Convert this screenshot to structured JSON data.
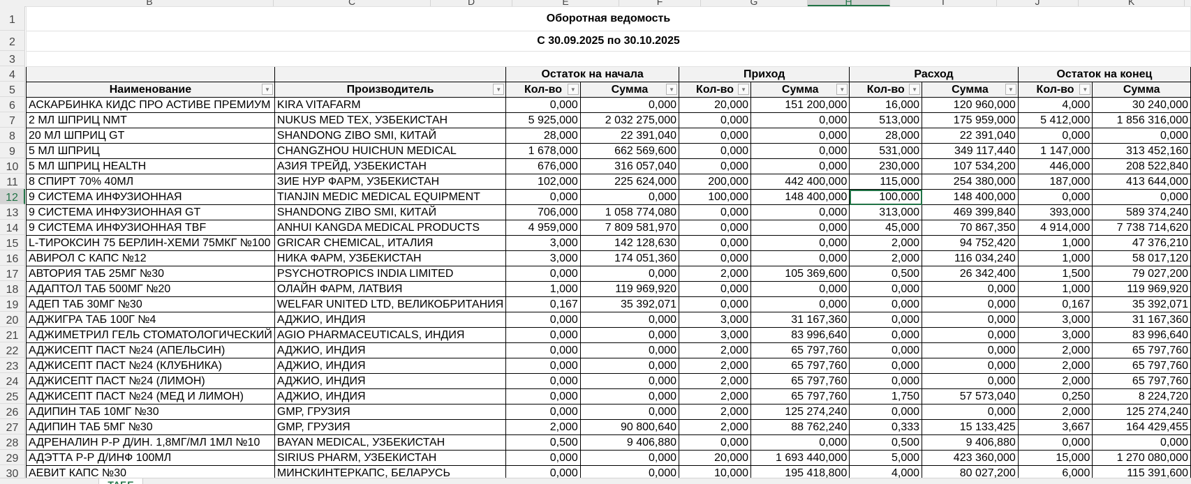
{
  "sheet": {
    "column_letters": [
      "B",
      "C",
      "D",
      "E",
      "F",
      "G",
      "H",
      "I",
      "J",
      "K"
    ],
    "selected_column": "H",
    "selected_row": 12,
    "selected_cell_value": "100,000",
    "title": "Оборотная ведомость",
    "subtitle": "С 30.09.2025 по 30.10.2025",
    "groups": [
      "Остаток на начала",
      "Приход",
      "Расход",
      "Остаток на конец"
    ],
    "headers": [
      "Наименование",
      "Производитель",
      "Кол-во",
      "Сумма",
      "Кол-во",
      "Сумма",
      "Кол-во",
      "Сумма",
      "Кол-во",
      "Сумма"
    ],
    "tab_label": "ТАБЕ",
    "accent_color": "#217346",
    "rows": [
      {
        "n": 6,
        "c": [
          " АСКАРБИНКА КИДС ПРО АСТИВЕ ПРЕМИУМ",
          "KIRA VITAFARM",
          "0,000",
          "0,000",
          "20,000",
          "151 200,000",
          "16,000",
          "120 960,000",
          "4,000",
          "30 240,000"
        ]
      },
      {
        "n": 7,
        "c": [
          "2 МЛ ШПРИЦ NMT",
          "NUKUS MED TEX, УЗБЕКИСТАН",
          "5 925,000",
          "2 032 275,000",
          "0,000",
          "0,000",
          "513,000",
          "175 959,000",
          "5 412,000",
          "1 856 316,000"
        ]
      },
      {
        "n": 8,
        "c": [
          "20 МЛ ШПРИЦ GT",
          "SHANDONG ZIBO SMI, КИТАЙ",
          "28,000",
          "22 391,040",
          "0,000",
          "0,000",
          "28,000",
          "22 391,040",
          "0,000",
          "0,000"
        ]
      },
      {
        "n": 9,
        "c": [
          "5 МЛ ШПРИЦ",
          "CHANGZHOU HUICHUN MEDICAL",
          "1 678,000",
          "662 569,600",
          "0,000",
          "0,000",
          "531,000",
          "349 117,440",
          "1 147,000",
          "313 452,160"
        ]
      },
      {
        "n": 10,
        "c": [
          "5 МЛ ШПРИЦ HEALTH",
          "АЗИЯ ТРЕЙД, УЗБЕКИСТАН",
          "676,000",
          "316 057,040",
          "0,000",
          "0,000",
          "230,000",
          "107 534,200",
          "446,000",
          "208 522,840"
        ]
      },
      {
        "n": 11,
        "c": [
          "8 СПИРТ 70% 40МЛ",
          "ЗИЕ НУР ФАРМ, УЗБЕКИСТАН",
          "102,000",
          "225 624,000",
          "200,000",
          "442 400,000",
          "115,000",
          "254 380,000",
          "187,000",
          "413 644,000"
        ]
      },
      {
        "n": 12,
        "c": [
          "9 СИСТЕМА ИНФУЗИОННАЯ",
          "TIANJIN MEDIC MEDICAL EQUIPMENT",
          "0,000",
          "0,000",
          "100,000",
          "148 400,000",
          "100,000",
          "148 400,000",
          "0,000",
          "0,000"
        ]
      },
      {
        "n": 13,
        "c": [
          "9 СИСТЕМА ИНФУЗИОННАЯ GT",
          "SHANDONG ZIBO SMI, КИТАЙ",
          "706,000",
          "1 058 774,080",
          "0,000",
          "0,000",
          "313,000",
          "469 399,840",
          "393,000",
          "589 374,240"
        ]
      },
      {
        "n": 14,
        "c": [
          "9 СИСТЕМА ИНФУЗИОННАЯ TBF",
          "ANHUI KANGDA MEDICAL PRODUCTS",
          "4 959,000",
          "7 809 581,970",
          "0,000",
          "0,000",
          "45,000",
          "70 867,350",
          "4 914,000",
          "7 738 714,620"
        ]
      },
      {
        "n": 15,
        "c": [
          "L-ТИРОКСИН 75 БЕРЛИН-ХЕМИ 75МКГ №100",
          "GRICAR CHEMICAL, ИТАЛИЯ",
          "3,000",
          "142 128,630",
          "0,000",
          "0,000",
          "2,000",
          "94 752,420",
          "1,000",
          "47 376,210"
        ]
      },
      {
        "n": 16,
        "c": [
          "АВИРОЛ С КАПС №12",
          "НИКА ФАРМ, УЗБЕКИСТАН",
          "3,000",
          "174 051,360",
          "0,000",
          "0,000",
          "2,000",
          "116 034,240",
          "1,000",
          "58 017,120"
        ]
      },
      {
        "n": 17,
        "c": [
          "АВТОРИЯ ТАБ 25МГ №30",
          "PSYCHOTROPICS INDIA LIMITED",
          "0,000",
          "0,000",
          "2,000",
          "105 369,600",
          "0,500",
          "26 342,400",
          "1,500",
          "79 027,200"
        ]
      },
      {
        "n": 18,
        "c": [
          "АДАПТОЛ ТАБ 500МГ №20",
          "ОЛАЙН ФАРМ, ЛАТВИЯ",
          "1,000",
          "119 969,920",
          "0,000",
          "0,000",
          "0,000",
          "0,000",
          "1,000",
          "119 969,920"
        ]
      },
      {
        "n": 19,
        "c": [
          "АДЕП ТАБ 30МГ №30",
          "WELFAR UNITED LTD, ВЕЛИКОБРИТАНИЯ",
          "0,167",
          "35 392,071",
          "0,000",
          "0,000",
          "0,000",
          "0,000",
          "0,167",
          "35 392,071"
        ]
      },
      {
        "n": 20,
        "c": [
          "АДЖИГРА ТАБ 100Г №4",
          "АДЖИО, ИНДИЯ",
          "0,000",
          "0,000",
          "3,000",
          "31 167,360",
          "0,000",
          "0,000",
          "3,000",
          "31 167,360"
        ]
      },
      {
        "n": 21,
        "c": [
          "АДЖИМЕТРИЛ ГЕЛЬ СТОМАТОЛОГИЧЕСКИЙ",
          "AGIO PHARMACEUTICALS, ИНДИЯ",
          "0,000",
          "0,000",
          "3,000",
          "83 996,640",
          "0,000",
          "0,000",
          "3,000",
          "83 996,640"
        ]
      },
      {
        "n": 22,
        "c": [
          "АДЖИСЕПТ ПАСТ №24 (АПЕЛЬСИН)",
          "АДЖИО, ИНДИЯ",
          "0,000",
          "0,000",
          "2,000",
          "65 797,760",
          "0,000",
          "0,000",
          "2,000",
          "65 797,760"
        ]
      },
      {
        "n": 23,
        "c": [
          "АДЖИСЕПТ ПАСТ №24 (КЛУБНИКА)",
          "АДЖИО, ИНДИЯ",
          "0,000",
          "0,000",
          "2,000",
          "65 797,760",
          "0,000",
          "0,000",
          "2,000",
          "65 797,760"
        ]
      },
      {
        "n": 24,
        "c": [
          "АДЖИСЕПТ ПАСТ №24 (ЛИМОН)",
          "АДЖИО, ИНДИЯ",
          "0,000",
          "0,000",
          "2,000",
          "65 797,760",
          "0,000",
          "0,000",
          "2,000",
          "65 797,760"
        ]
      },
      {
        "n": 25,
        "c": [
          "АДЖИСЕПТ ПАСТ №24 (МЕД И ЛИМОН)",
          "АДЖИО, ИНДИЯ",
          "0,000",
          "0,000",
          "2,000",
          "65 797,760",
          "1,750",
          "57 573,040",
          "0,250",
          "8 224,720"
        ]
      },
      {
        "n": 26,
        "c": [
          "АДИПИН ТАБ 10МГ №30",
          "GMP, ГРУЗИЯ",
          "0,000",
          "0,000",
          "2,000",
          "125 274,240",
          "0,000",
          "0,000",
          "2,000",
          "125 274,240"
        ]
      },
      {
        "n": 27,
        "c": [
          "АДИПИН ТАБ 5МГ №30",
          "GMP, ГРУЗИЯ",
          "2,000",
          "90 800,640",
          "2,000",
          "88 762,240",
          "0,333",
          "15 133,425",
          "3,667",
          "164 429,455"
        ]
      },
      {
        "n": 28,
        "c": [
          "АДРЕНАЛИН Р-Р Д/ИН. 1,8МГ/МЛ 1МЛ №10",
          "BAYAN MEDICAL, УЗБЕКИСТАН",
          "0,500",
          "9 406,880",
          "0,000",
          "0,000",
          "0,500",
          "9 406,880",
          "0,000",
          "0,000"
        ]
      },
      {
        "n": 29,
        "c": [
          "АДЭТТА Р-Р Д/ИНФ 100МЛ",
          "SIRIUS PHARM, УЗБЕКИСТАН",
          "0,000",
          "0,000",
          "20,000",
          "1 693 440,000",
          "5,000",
          "423 360,000",
          "15,000",
          "1 270 080,000"
        ]
      },
      {
        "n": 30,
        "c": [
          "АЕВИТ КАПС №30",
          "МИНСКИНТЕРКАПС, БЕЛАРУСЬ",
          "0,000",
          "0,000",
          "10,000",
          "195 418,800",
          "4,000",
          "80 027,200",
          "6,000",
          "115 391,600"
        ]
      }
    ]
  }
}
